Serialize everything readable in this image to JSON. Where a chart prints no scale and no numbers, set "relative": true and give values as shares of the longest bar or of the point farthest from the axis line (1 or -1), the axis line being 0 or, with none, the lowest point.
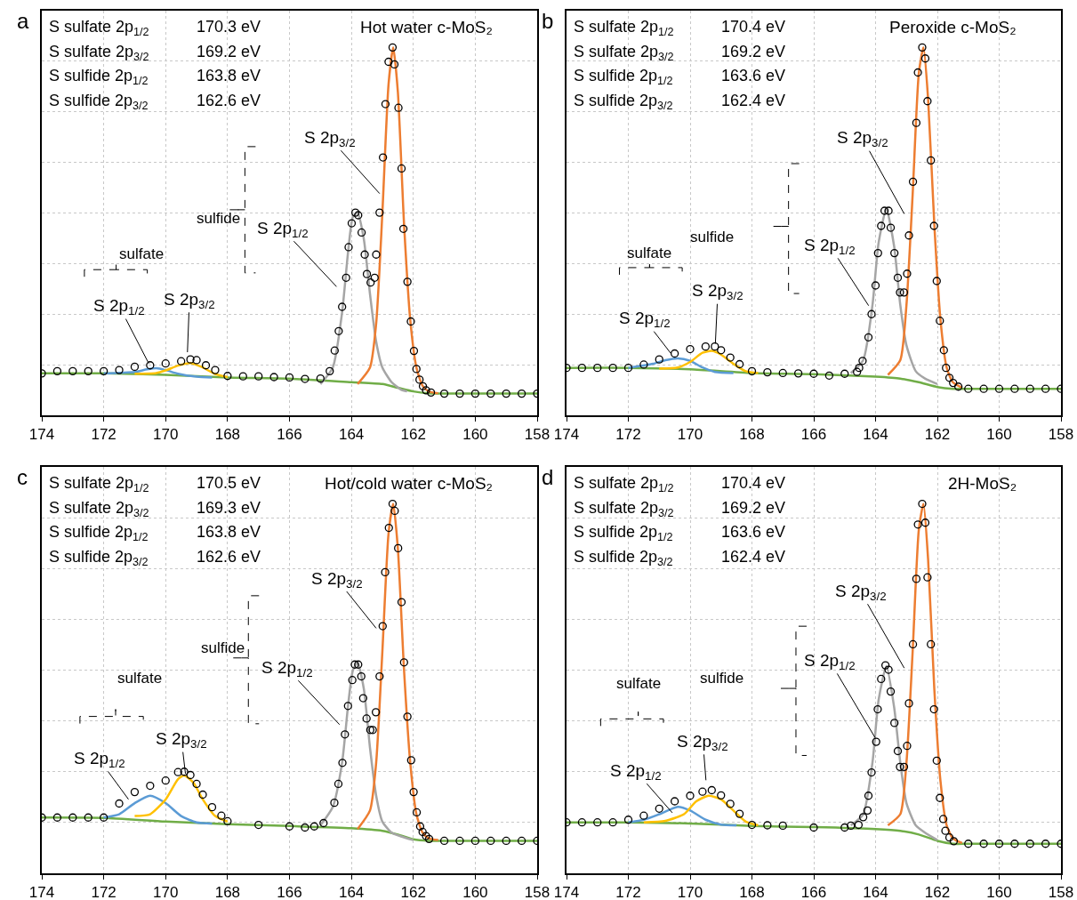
{
  "chart_data": [
    {
      "type": "line",
      "title": "Hot water c-MoS₂",
      "relative": true,
      "xlim": [
        174,
        158
      ],
      "xticks": [
        174,
        172,
        170,
        168,
        166,
        164,
        162,
        160,
        158
      ],
      "grid": true,
      "annotations": [
        "a",
        "S sulfate 2p$_{1/2}$",
        "170.3 eV",
        "S sulfate 2p$_{3/2}$",
        "169.2 eV",
        "S sulfide 2p$_{1/2}$",
        "163.8 eV",
        "S sulfide 2p$_{3/2}$",
        "162.6 eV",
        "S 2p$_{3/2}$",
        "S 2p$_{1/2}$",
        "S 2p$_{1/2}$",
        "S 2p$_{3/2}$",
        "sulfide",
        "sulfate"
      ],
      "series": [
        {
          "color": "#70ad47",
          "x": [
            174,
            172,
            170,
            168,
            166,
            164,
            163,
            162.5,
            162,
            161.5,
            161,
            158
          ],
          "values": [
            0.114,
            0.114,
            0.11,
            0.103,
            0.1,
            0.09,
            0.085,
            0.075,
            0.065,
            0.06,
            0.059,
            0.059
          ]
        },
        {
          "color": "#5b9bd5",
          "x": [
            172,
            171,
            170.6,
            170.3,
            170,
            169.6,
            169,
            168.5
          ],
          "values": [
            0.114,
            0.118,
            0.125,
            0.128,
            0.123,
            0.113,
            0.105,
            0.103
          ]
        },
        {
          "color": "#ffc000",
          "x": [
            171,
            170.3,
            170,
            169.6,
            169.2,
            168.8,
            168.4,
            168
          ],
          "values": [
            0.113,
            0.115,
            0.122,
            0.135,
            0.142,
            0.13,
            0.112,
            0.104
          ]
        },
        {
          "color": "#a5a5a5",
          "x": [
            165,
            164.6,
            164.3,
            164.1,
            163.95,
            163.8,
            163.6,
            163.4,
            163.2,
            163,
            162.7,
            162.4,
            162.2
          ],
          "values": [
            0.085,
            0.13,
            0.28,
            0.45,
            0.54,
            0.55,
            0.48,
            0.33,
            0.2,
            0.13,
            0.09,
            0.07,
            0.065
          ]
        },
        {
          "color": "#ed7d31",
          "x": [
            163.8,
            163.4,
            163.2,
            163.0,
            162.8,
            162.65,
            162.5,
            162.3,
            162.1,
            161.9,
            161.7,
            161.5,
            161.2
          ],
          "values": [
            0.085,
            0.13,
            0.25,
            0.55,
            0.9,
            1.0,
            0.88,
            0.52,
            0.26,
            0.13,
            0.08,
            0.065,
            0.06
          ]
        },
        {
          "type": "scatter",
          "marker": "circle",
          "color": "#000000",
          "x": [
            174,
            173.5,
            173,
            172.5,
            172,
            171.5,
            171,
            170.5,
            170,
            169.5,
            169.2,
            169,
            168.7,
            168.4,
            168,
            167.5,
            167,
            166.5,
            166,
            165.5,
            165,
            164.7,
            164.54,
            164.41,
            164.3,
            164.17,
            164.09,
            163.99,
            163.87,
            163.78,
            163.67,
            163.57,
            163.5,
            163.38,
            163.25,
            163.2,
            163.09,
            162.98,
            162.9,
            162.8,
            162.67,
            162.61,
            162.48,
            162.38,
            162.32,
            162.19,
            162.08,
            161.98,
            161.9,
            161.8,
            161.69,
            161.59,
            161.43,
            161,
            160.5,
            160,
            159.5,
            159,
            158.5,
            158
          ],
          "values": [
            0.114,
            0.12,
            0.12,
            0.12,
            0.12,
            0.123,
            0.132,
            0.136,
            0.141,
            0.147,
            0.152,
            0.15,
            0.136,
            0.123,
            0.107,
            0.106,
            0.106,
            0.104,
            0.103,
            0.099,
            0.1,
            0.12,
            0.176,
            0.229,
            0.295,
            0.374,
            0.457,
            0.522,
            0.551,
            0.544,
            0.497,
            0.437,
            0.384,
            0.361,
            0.374,
            0.437,
            0.551,
            0.701,
            0.846,
            0.961,
            1.0,
            0.954,
            0.836,
            0.671,
            0.507,
            0.363,
            0.255,
            0.175,
            0.126,
            0.097,
            0.079,
            0.068,
            0.062,
            0.059,
            0.059,
            0.059,
            0.059,
            0.059,
            0.059,
            0.059
          ]
        }
      ]
    },
    {
      "type": "line",
      "title": "Peroxide c-MoS₂",
      "relative": true,
      "xlim": [
        174,
        158
      ],
      "xticks": [
        174,
        172,
        170,
        168,
        166,
        164,
        162,
        160,
        158
      ],
      "grid": true,
      "annotations": [
        "b",
        "S sulfate 2p$_{1/2}$",
        "170.4 eV",
        "S sulfate 2p$_{3/2}$",
        "169.2 eV",
        "S sulfide 2p$_{1/2}$",
        "163.6 eV",
        "S sulfide 2p$_{3/2}$",
        "162.4 eV",
        "S 2p$_{3/2}$",
        "S 2p$_{1/2}$",
        "S 2p$_{1/2}$",
        "S 2p$_{3/2}$",
        "sulfide",
        "sulfate"
      ],
      "series": [
        {
          "color": "#70ad47",
          "x": [
            174,
            172,
            170,
            168,
            166,
            164,
            163.2,
            162.6,
            162,
            161.5,
            161,
            158
          ],
          "values": [
            0.129,
            0.129,
            0.125,
            0.115,
            0.112,
            0.105,
            0.1,
            0.09,
            0.077,
            0.072,
            0.072,
            0.072
          ]
        },
        {
          "color": "#5b9bd5",
          "x": [
            172,
            171.2,
            170.8,
            170.4,
            170.0,
            169.6,
            169.2,
            168.6
          ],
          "values": [
            0.129,
            0.14,
            0.15,
            0.155,
            0.148,
            0.13,
            0.118,
            0.115
          ]
        },
        {
          "color": "#ffc000",
          "x": [
            171,
            170.4,
            170,
            169.6,
            169.3,
            169,
            168.6,
            168.2,
            167.8
          ],
          "values": [
            0.127,
            0.13,
            0.145,
            0.17,
            0.175,
            0.165,
            0.14,
            0.12,
            0.115
          ]
        },
        {
          "color": "#a5a5a5",
          "x": [
            164.8,
            164.4,
            164.1,
            163.9,
            163.65,
            163.4,
            163.2,
            163,
            162.7,
            162.4,
            162.0
          ],
          "values": [
            0.115,
            0.15,
            0.3,
            0.47,
            0.56,
            0.46,
            0.3,
            0.19,
            0.12,
            0.1,
            0.085
          ]
        },
        {
          "color": "#ed7d31",
          "x": [
            163.6,
            163.2,
            163.0,
            162.8,
            162.6,
            162.45,
            162.3,
            162.1,
            161.9,
            161.7,
            161.5,
            161.2
          ],
          "values": [
            0.11,
            0.15,
            0.3,
            0.6,
            0.93,
            1.0,
            0.86,
            0.52,
            0.26,
            0.13,
            0.09,
            0.075
          ]
        },
        {
          "type": "scatter",
          "marker": "circle",
          "color": "#000000",
          "x": [
            174,
            173.5,
            173,
            172.5,
            172,
            171.5,
            171,
            170.5,
            170,
            169.5,
            169.2,
            169,
            168.7,
            168.4,
            168,
            167.5,
            167,
            166.5,
            166,
            165.5,
            165,
            164.6,
            164.53,
            164.42,
            164.23,
            164.13,
            164.0,
            163.92,
            163.82,
            163.71,
            163.58,
            163.51,
            163.39,
            163.28,
            163.21,
            163.08,
            162.98,
            162.92,
            162.79,
            162.68,
            162.63,
            162.49,
            162.39,
            162.32,
            162.21,
            162.11,
            162.02,
            161.92,
            161.79,
            161.72,
            161.61,
            161.49,
            161.32,
            161,
            160.5,
            160,
            159.5,
            159,
            158.5,
            158
          ],
          "values": [
            0.129,
            0.129,
            0.129,
            0.129,
            0.129,
            0.138,
            0.152,
            0.168,
            0.18,
            0.187,
            0.187,
            0.177,
            0.157,
            0.139,
            0.12,
            0.117,
            0.115,
            0.114,
            0.113,
            0.108,
            0.113,
            0.118,
            0.129,
            0.148,
            0.212,
            0.275,
            0.353,
            0.441,
            0.515,
            0.556,
            0.556,
            0.51,
            0.441,
            0.374,
            0.334,
            0.334,
            0.385,
            0.489,
            0.635,
            0.795,
            0.932,
            1.0,
            0.97,
            0.854,
            0.693,
            0.515,
            0.365,
            0.257,
            0.177,
            0.129,
            0.102,
            0.088,
            0.078,
            0.072,
            0.072,
            0.072,
            0.072,
            0.072,
            0.072,
            0.072
          ]
        }
      ]
    },
    {
      "type": "line",
      "title": "Hot/cold water c-MoS₂",
      "relative": true,
      "xlim": [
        174,
        158
      ],
      "xticks": [
        174,
        172,
        170,
        168,
        166,
        164,
        162,
        160,
        158
      ],
      "grid": true,
      "annotations": [
        "c",
        "S sulfate 2p$_{1/2}$",
        "170.5 eV",
        "S sulfate 2p$_{3/2}$",
        "169.3 eV",
        "S sulfide 2p$_{1/2}$",
        "163.8 eV",
        "S sulfide 2p$_{3/2}$",
        "162.6 eV",
        "S 2p$_{3/2}$",
        "S 2p$_{1/2}$",
        "S 2p$_{1/2}$",
        "S 2p$_{3/2}$",
        "sulfide",
        "sulfate"
      ],
      "series": [
        {
          "color": "#70ad47",
          "x": [
            174,
            172,
            170,
            168,
            166,
            164,
            163,
            162.5,
            162,
            161.5,
            161,
            158
          ],
          "values": [
            0.151,
            0.15,
            0.14,
            0.133,
            0.128,
            0.122,
            0.115,
            0.105,
            0.092,
            0.088,
            0.088,
            0.088
          ]
        },
        {
          "color": "#5b9bd5",
          "x": [
            172,
            171.5,
            171,
            170.5,
            170.0,
            169.5,
            169,
            168.5
          ],
          "values": [
            0.151,
            0.16,
            0.19,
            0.21,
            0.19,
            0.155,
            0.138,
            0.135
          ]
        },
        {
          "color": "#ffc000",
          "x": [
            171,
            170.5,
            170,
            169.6,
            169.4,
            169.1,
            168.8,
            168.4,
            168
          ],
          "values": [
            0.155,
            0.16,
            0.2,
            0.255,
            0.265,
            0.245,
            0.2,
            0.155,
            0.14
          ]
        },
        {
          "color": "#a5a5a5",
          "x": [
            165,
            164.6,
            164.3,
            164.1,
            163.95,
            163.8,
            163.6,
            163.4,
            163.2,
            163,
            162.7,
            162.4,
            162.0
          ],
          "values": [
            0.13,
            0.18,
            0.3,
            0.46,
            0.55,
            0.57,
            0.5,
            0.34,
            0.21,
            0.14,
            0.11,
            0.1,
            0.09
          ]
        },
        {
          "color": "#ed7d31",
          "x": [
            163.8,
            163.4,
            163.2,
            163.0,
            162.8,
            162.65,
            162.5,
            162.3,
            162.1,
            161.9,
            161.7,
            161.5,
            161.2
          ],
          "values": [
            0.12,
            0.17,
            0.3,
            0.6,
            0.92,
            1.0,
            0.88,
            0.55,
            0.3,
            0.16,
            0.11,
            0.095,
            0.09
          ]
        },
        {
          "type": "scatter",
          "marker": "circle",
          "color": "#000000",
          "x": [
            174,
            173.5,
            173,
            172.5,
            172,
            171.5,
            171,
            170.5,
            170,
            169.6,
            169.4,
            169.2,
            169,
            168.8,
            168.5,
            168.2,
            168,
            167,
            166,
            165.5,
            165.2,
            164.9,
            164.55,
            164.42,
            164.29,
            164.21,
            164.11,
            163.97,
            163.89,
            163.78,
            163.68,
            163.62,
            163.51,
            163.39,
            163.31,
            163.21,
            163.09,
            162.99,
            162.91,
            162.79,
            162.67,
            162.6,
            162.49,
            162.38,
            162.3,
            162.19,
            162.07,
            161.99,
            161.89,
            161.78,
            161.7,
            161.59,
            161.49,
            161,
            160.5,
            160,
            159.5,
            159,
            158.5,
            158
          ],
          "values": [
            0.151,
            0.151,
            0.151,
            0.151,
            0.151,
            0.189,
            0.22,
            0.237,
            0.251,
            0.274,
            0.275,
            0.266,
            0.242,
            0.213,
            0.179,
            0.156,
            0.141,
            0.131,
            0.127,
            0.124,
            0.127,
            0.136,
            0.191,
            0.242,
            0.299,
            0.376,
            0.453,
            0.523,
            0.565,
            0.565,
            0.533,
            0.474,
            0.419,
            0.388,
            0.388,
            0.436,
            0.533,
            0.669,
            0.815,
            0.935,
            1.0,
            0.981,
            0.88,
            0.734,
            0.571,
            0.424,
            0.306,
            0.22,
            0.165,
            0.127,
            0.112,
            0.101,
            0.093,
            0.088,
            0.088,
            0.088,
            0.088,
            0.088,
            0.088,
            0.088
          ]
        }
      ]
    },
    {
      "type": "line",
      "title": "2H-MoS₂",
      "relative": true,
      "xlim": [
        174,
        158
      ],
      "xticks": [
        174,
        172,
        170,
        168,
        166,
        164,
        162,
        160,
        158
      ],
      "grid": true,
      "annotations": [
        "d",
        "S sulfate 2p$_{1/2}$",
        "170.4 eV",
        "S sulfate 2p$_{3/2}$",
        "169.2 eV",
        "S sulfide 2p$_{1/2}$",
        "163.6 eV",
        "S sulfide 2p$_{3/2}$",
        "162.4 eV",
        "S 2p$_{3/2}$",
        "S 2p$_{1/2}$",
        "S 2p$_{1/2}$",
        "S 2p$_{3/2}$",
        "sulfide",
        "sulfate"
      ],
      "series": [
        {
          "color": "#70ad47",
          "x": [
            174,
            172,
            170,
            168,
            166,
            164,
            163.2,
            162.6,
            162,
            161.5,
            161,
            158
          ],
          "values": [
            0.138,
            0.138,
            0.135,
            0.128,
            0.125,
            0.12,
            0.115,
            0.105,
            0.088,
            0.08,
            0.08,
            0.08
          ]
        },
        {
          "color": "#5b9bd5",
          "x": [
            172,
            171.5,
            171,
            170.4,
            170,
            169.5,
            169,
            168.5
          ],
          "values": [
            0.138,
            0.145,
            0.16,
            0.18,
            0.17,
            0.145,
            0.132,
            0.13
          ]
        },
        {
          "color": "#ffc000",
          "x": [
            171.5,
            170.8,
            170.2,
            169.8,
            169.4,
            169,
            168.6,
            168.2,
            167.8
          ],
          "values": [
            0.138,
            0.142,
            0.16,
            0.195,
            0.21,
            0.2,
            0.17,
            0.14,
            0.13
          ]
        },
        {
          "color": "#a5a5a5",
          "x": [
            164.8,
            164.4,
            164.1,
            163.9,
            163.65,
            163.4,
            163.2,
            163,
            162.7,
            162.4,
            162.0
          ],
          "values": [
            0.13,
            0.16,
            0.3,
            0.47,
            0.56,
            0.45,
            0.3,
            0.19,
            0.13,
            0.11,
            0.09
          ]
        },
        {
          "color": "#ed7d31",
          "x": [
            163.6,
            163.2,
            163.0,
            162.8,
            162.6,
            162.45,
            162.3,
            162.1,
            161.9,
            161.7,
            161.5,
            161.2
          ],
          "values": [
            0.13,
            0.16,
            0.3,
            0.6,
            0.93,
            1.0,
            0.85,
            0.5,
            0.25,
            0.13,
            0.095,
            0.082
          ]
        },
        {
          "type": "scatter",
          "marker": "circle",
          "color": "#000000",
          "x": [
            174,
            173.5,
            173,
            172.5,
            172,
            171.5,
            171,
            170.5,
            170,
            169.6,
            169.3,
            169,
            168.7,
            168.4,
            168,
            167.5,
            167,
            166,
            165,
            164.8,
            164.55,
            164.4,
            164.26,
            164.23,
            164.13,
            163.98,
            163.93,
            163.82,
            163.68,
            163.58,
            163.51,
            163.39,
            163.28,
            163.21,
            163.08,
            162.98,
            162.92,
            162.79,
            162.68,
            162.63,
            162.49,
            162.39,
            162.32,
            162.21,
            162.11,
            162.02,
            161.92,
            161.81,
            161.74,
            161.61,
            161.47,
            161,
            160.5,
            160,
            159.5,
            159,
            158.5,
            158
          ],
          "values": [
            0.138,
            0.138,
            0.138,
            0.138,
            0.145,
            0.156,
            0.175,
            0.195,
            0.21,
            0.221,
            0.225,
            0.211,
            0.188,
            0.161,
            0.131,
            0.13,
            0.129,
            0.124,
            0.124,
            0.129,
            0.131,
            0.152,
            0.17,
            0.21,
            0.273,
            0.356,
            0.444,
            0.526,
            0.563,
            0.551,
            0.492,
            0.407,
            0.331,
            0.288,
            0.288,
            0.345,
            0.46,
            0.62,
            0.797,
            0.944,
            1.0,
            0.949,
            0.801,
            0.62,
            0.444,
            0.305,
            0.204,
            0.147,
            0.115,
            0.097,
            0.087,
            0.08,
            0.08,
            0.08,
            0.08,
            0.08,
            0.08,
            0.08
          ]
        }
      ]
    }
  ]
}
